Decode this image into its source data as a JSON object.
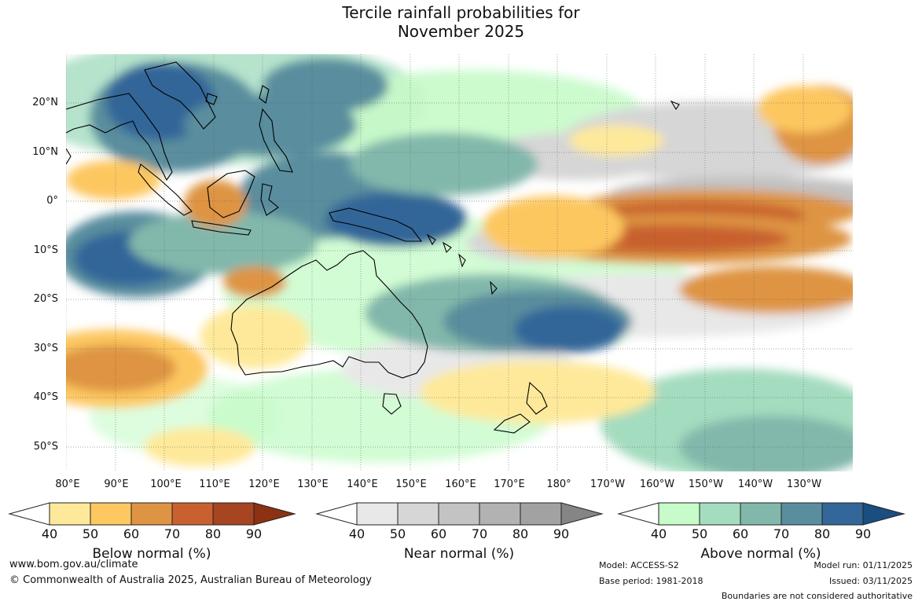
{
  "title_line1": "Tercile rainfall probabilities for",
  "title_line2": "November 2025",
  "map": {
    "region": "Indo-Pacific / Australia",
    "lat_labels": [
      "20°N",
      "10°N",
      "0°",
      "10°S",
      "20°S",
      "30°S",
      "40°S",
      "50°S"
    ],
    "lon_labels": [
      "80°E",
      "90°E",
      "100°E",
      "110°E",
      "120°E",
      "130°E",
      "140°E",
      "150°E",
      "160°E",
      "170°E",
      "180°",
      "170°W",
      "160°W",
      "150°W",
      "140°W",
      "130°W"
    ]
  },
  "legend": {
    "below": {
      "title": "Below normal (%)",
      "ticks": [
        "40",
        "50",
        "60",
        "70",
        "80",
        "90"
      ],
      "colors": [
        "#ffffff",
        "#fee99a",
        "#fdc761",
        "#de9442",
        "#c8612f",
        "#a74422",
        "#8c3112"
      ]
    },
    "near": {
      "title": "Near normal (%)",
      "ticks": [
        "40",
        "50",
        "60",
        "70",
        "80",
        "90"
      ],
      "colors": [
        "#ffffff",
        "#e8e8e8",
        "#d6d6d6",
        "#c3c3c3",
        "#b2b2b2",
        "#a2a2a2",
        "#858585"
      ]
    },
    "above": {
      "title": "Above normal (%)",
      "ticks": [
        "40",
        "50",
        "60",
        "70",
        "80",
        "90"
      ],
      "colors": [
        "#ffffff",
        "#c7fbc9",
        "#a4dcbf",
        "#82b8ab",
        "#5a8e9e",
        "#336699",
        "#1a4d80"
      ]
    }
  },
  "footer": {
    "website": "www.bom.gov.au/climate",
    "copyright": "© Commonwealth of Australia 2025, Australian Bureau of Meteorology",
    "model": "Model: ACCESS-S2",
    "base_period": "Base period: 1981-2018",
    "model_run": "Model run: 01/11/2025",
    "issued": "Issued: 03/11/2025",
    "disclaimer": "Boundaries are not considered authoritative"
  }
}
